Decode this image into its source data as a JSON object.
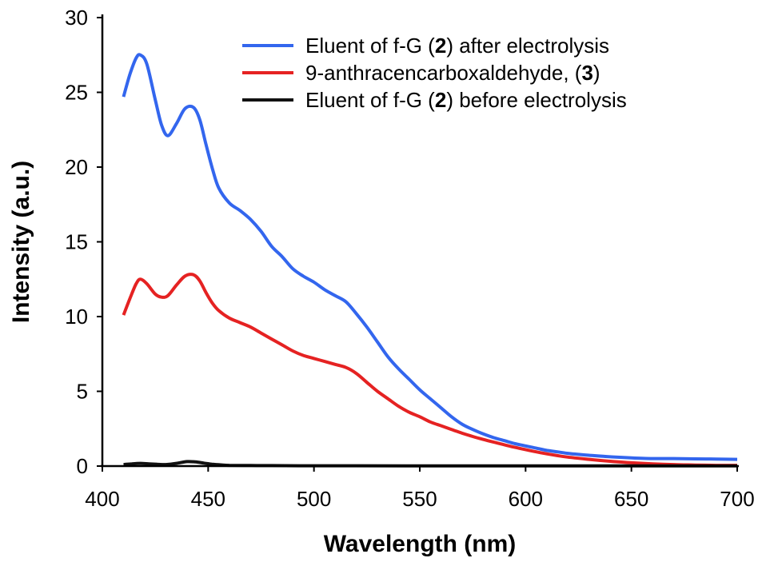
{
  "chart_data": {
    "type": "line",
    "title": "",
    "xlabel": "Wavelength (nm)",
    "ylabel": "Intensity (a.u.)",
    "xlim": [
      400,
      700
    ],
    "ylim": [
      0,
      30
    ],
    "xticks": [
      400,
      450,
      500,
      550,
      600,
      650,
      700
    ],
    "yticks": [
      0,
      5,
      10,
      15,
      20,
      25,
      30
    ],
    "grid": false,
    "legend_position": "top-right",
    "series": [
      {
        "name_parts": [
          "Eluent of f-G (",
          "2",
          ") after electrolysis"
        ],
        "color": "#3366ee",
        "x": [
          410,
          413,
          416,
          418,
          421,
          425,
          428,
          431,
          435,
          439,
          443,
          446,
          449,
          452,
          455,
          460,
          465,
          470,
          475,
          480,
          485,
          490,
          495,
          500,
          505,
          510,
          515,
          520,
          525,
          530,
          535,
          540,
          545,
          550,
          555,
          560,
          565,
          570,
          575,
          580,
          585,
          590,
          595,
          600,
          605,
          610,
          615,
          620,
          625,
          630,
          640,
          650,
          660,
          670,
          680,
          690,
          700
        ],
        "y": [
          24.7,
          26.2,
          27.3,
          27.5,
          26.9,
          24.5,
          22.8,
          22.1,
          22.9,
          23.9,
          24.0,
          23.2,
          21.5,
          19.9,
          18.6,
          17.6,
          17.1,
          16.5,
          15.7,
          14.7,
          14.0,
          13.2,
          12.7,
          12.3,
          11.8,
          11.4,
          11.0,
          10.2,
          9.3,
          8.3,
          7.3,
          6.5,
          5.8,
          5.1,
          4.5,
          3.9,
          3.3,
          2.8,
          2.45,
          2.15,
          1.9,
          1.7,
          1.5,
          1.35,
          1.2,
          1.05,
          0.95,
          0.85,
          0.78,
          0.72,
          0.62,
          0.55,
          0.5,
          0.5,
          0.48,
          0.47,
          0.45
        ]
      },
      {
        "name_parts": [
          "9-anthracencarboxaldehyde, (",
          "3",
          ")"
        ],
        "color": "#e52222",
        "x": [
          410,
          413,
          416,
          418,
          421,
          425,
          428,
          431,
          435,
          439,
          443,
          446,
          449,
          452,
          455,
          460,
          465,
          470,
          475,
          480,
          485,
          490,
          495,
          500,
          505,
          510,
          515,
          520,
          525,
          530,
          535,
          540,
          545,
          550,
          555,
          560,
          565,
          570,
          575,
          580,
          585,
          590,
          595,
          600,
          605,
          610,
          615,
          620,
          630,
          640,
          650,
          660,
          670,
          680,
          690,
          700
        ],
        "y": [
          10.1,
          11.2,
          12.2,
          12.5,
          12.2,
          11.5,
          11.3,
          11.4,
          12.1,
          12.7,
          12.8,
          12.4,
          11.6,
          10.9,
          10.4,
          9.9,
          9.6,
          9.3,
          8.9,
          8.5,
          8.1,
          7.7,
          7.4,
          7.2,
          7.0,
          6.8,
          6.6,
          6.2,
          5.6,
          5.0,
          4.5,
          4.0,
          3.6,
          3.3,
          2.95,
          2.7,
          2.45,
          2.2,
          1.98,
          1.78,
          1.6,
          1.42,
          1.25,
          1.1,
          0.95,
          0.82,
          0.7,
          0.6,
          0.45,
          0.32,
          0.22,
          0.15,
          0.1,
          0.07,
          0.05,
          0.05
        ]
      },
      {
        "name_parts": [
          "Eluent of f-G (",
          "2",
          ") before electrolysis"
        ],
        "color": "#111111",
        "x": [
          410,
          414,
          418,
          422,
          426,
          430,
          435,
          440,
          444,
          448,
          452,
          456,
          460,
          470,
          480,
          500,
          520,
          550,
          600,
          650,
          700
        ],
        "y": [
          0.1,
          0.15,
          0.18,
          0.15,
          0.12,
          0.1,
          0.18,
          0.3,
          0.28,
          0.2,
          0.12,
          0.08,
          0.05,
          0.04,
          0.03,
          0.02,
          0.02,
          0.01,
          0.01,
          0.01,
          0.01
        ]
      }
    ]
  }
}
